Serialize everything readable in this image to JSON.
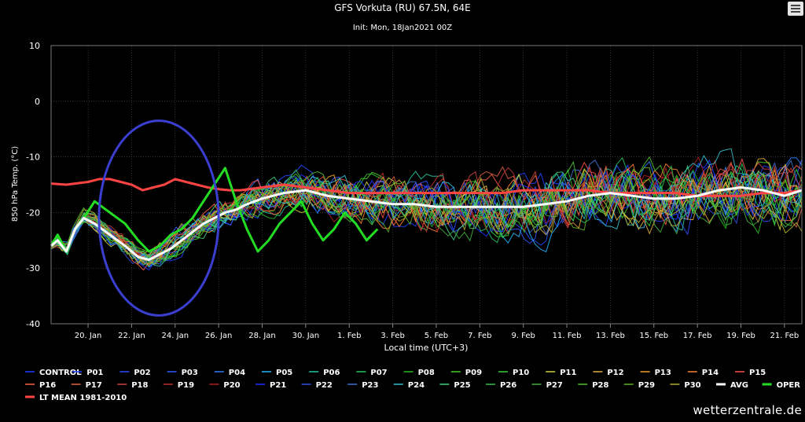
{
  "chart_data": {
    "type": "line",
    "title": "GFS Vorkuta (RU) 67.5N, 64E",
    "subtitle": "Init: Mon, 18Jan2021 00Z",
    "xlabel": "Local time (UTC+3)",
    "ylabel": "850 hPa Temp. (°C)",
    "ylim": [
      -40,
      10
    ],
    "yticks": [
      10,
      0,
      -10,
      -20,
      -30,
      -40
    ],
    "xlim": [
      18.3,
      52.8
    ],
    "xticks": [
      {
        "label": "20. Jan",
        "day": 20
      },
      {
        "label": "22. Jan",
        "day": 22
      },
      {
        "label": "24. Jan",
        "day": 24
      },
      {
        "label": "26. Jan",
        "day": 26
      },
      {
        "label": "28. Jan",
        "day": 28
      },
      {
        "label": "30. Jan",
        "day": 30
      },
      {
        "label": "1. Feb",
        "day": 32
      },
      {
        "label": "3. Feb",
        "day": 34
      },
      {
        "label": "5. Feb",
        "day": 36
      },
      {
        "label": "7. Feb",
        "day": 38
      },
      {
        "label": "9. Feb",
        "day": 40
      },
      {
        "label": "11. Feb",
        "day": 42
      },
      {
        "label": "13. Feb",
        "day": 44
      },
      {
        "label": "15. Feb",
        "day": 46
      },
      {
        "label": "17. Feb",
        "day": 48
      },
      {
        "label": "19. Feb",
        "day": 50
      },
      {
        "label": "21. Feb",
        "day": 52
      }
    ],
    "grid": true,
    "legend_position": "bottom",
    "series": [
      {
        "name": "OPER",
        "color": "#22dd22",
        "x": [
          18.3,
          18.6,
          19,
          19.4,
          19.8,
          20.3,
          21,
          21.7,
          22.3,
          22.8,
          23.3,
          23.8,
          24.3,
          24.8,
          25.3,
          25.8,
          26.3,
          26.8,
          27.3,
          27.8,
          28.3,
          28.8,
          29.3,
          29.8,
          30.3,
          30.8,
          31.3,
          31.8,
          32.3,
          32.8,
          33.3
        ],
        "values": [
          -26,
          -24,
          -27,
          -23,
          -21,
          -18,
          -20,
          -22,
          -25,
          -27,
          -26,
          -24,
          -23,
          -21,
          -18,
          -15,
          -12,
          -18,
          -23,
          -27,
          -25,
          -22,
          -20,
          -18,
          -22,
          -25,
          -23,
          -20,
          -22,
          -25,
          -23
        ]
      },
      {
        "name": "AVG",
        "color": "#ffffff",
        "x": [
          18.3,
          18.6,
          19,
          19.4,
          19.8,
          20.3,
          21,
          21.7,
          22.3,
          22.8,
          23.3,
          23.8,
          24.3,
          24.8,
          25.3,
          25.8,
          26.3,
          26.8,
          27.3,
          28,
          29,
          30,
          31,
          32,
          33,
          34,
          35,
          36,
          37,
          38,
          39,
          40,
          41,
          42,
          43,
          44,
          45,
          46,
          47,
          48,
          49,
          50,
          51,
          52,
          52.8
        ],
        "values": [
          -26,
          -25,
          -27,
          -23,
          -21,
          -22,
          -24,
          -26,
          -28,
          -28.5,
          -27.5,
          -26.5,
          -25,
          -23.5,
          -22,
          -21,
          -20,
          -19.5,
          -18.5,
          -17.5,
          -16.5,
          -16,
          -17,
          -17.5,
          -18,
          -18.5,
          -18.5,
          -19,
          -19,
          -19,
          -19,
          -19,
          -18.5,
          -18,
          -17,
          -16.5,
          -17,
          -17.5,
          -17.5,
          -17,
          -16,
          -15.5,
          -16,
          -17,
          -16
        ]
      },
      {
        "name": "LT MEAN 1981-2010",
        "color": "#ff4444",
        "x": [
          18.3,
          19,
          20,
          20.5,
          21,
          21.5,
          22,
          22.5,
          23,
          23.5,
          24,
          24.5,
          25,
          25.5,
          26,
          26.5,
          27,
          28,
          29,
          30,
          31,
          32,
          33,
          34,
          35,
          36,
          37,
          38,
          39,
          40,
          41,
          42,
          43,
          44,
          45,
          46,
          47,
          48,
          49,
          50,
          51,
          52,
          52.8
        ],
        "values": [
          -14.8,
          -15,
          -14.5,
          -14,
          -14,
          -14.5,
          -15,
          -16,
          -15.5,
          -15,
          -14,
          -14.5,
          -15,
          -15.5,
          -15.8,
          -16,
          -16,
          -15.5,
          -15,
          -15.5,
          -16,
          -16.5,
          -16.5,
          -16.5,
          -16.5,
          -16.5,
          -16.5,
          -16.5,
          -16.5,
          -16,
          -16,
          -16,
          -16,
          -16.5,
          -16.5,
          -16.5,
          -16.5,
          -17,
          -17,
          -17,
          -16.5,
          -16.5,
          -16
        ]
      }
    ],
    "annotations": [
      {
        "type": "ellipse",
        "color": "#3a3fd0",
        "from_day": 20.5,
        "to_day": 26.0,
        "top": -3.5,
        "bottom": -38.5
      }
    ]
  },
  "legend": {
    "items": [
      {
        "name": "CONTROL",
        "color": "#1e3cff",
        "width": 1
      },
      {
        "name": "P01",
        "color": "#2040ff",
        "width": 1
      },
      {
        "name": "P02",
        "color": "#2a4cff",
        "width": 1
      },
      {
        "name": "P03",
        "color": "#3058ff",
        "width": 1
      },
      {
        "name": "P04",
        "color": "#2f7bff",
        "width": 1
      },
      {
        "name": "P05",
        "color": "#20b8ff",
        "width": 1
      },
      {
        "name": "P06",
        "color": "#20c8a0",
        "width": 1
      },
      {
        "name": "P07",
        "color": "#22c860",
        "width": 1
      },
      {
        "name": "P08",
        "color": "#22bb22",
        "width": 1
      },
      {
        "name": "P09",
        "color": "#44d022",
        "width": 1
      },
      {
        "name": "P10",
        "color": "#33cc33",
        "width": 1
      },
      {
        "name": "P11",
        "color": "#d0d040",
        "width": 1
      },
      {
        "name": "P12",
        "color": "#e0b040",
        "width": 1
      },
      {
        "name": "P13",
        "color": "#f0a030",
        "width": 1
      },
      {
        "name": "P14",
        "color": "#ff8030",
        "width": 1
      },
      {
        "name": "P15",
        "color": "#ff5050",
        "width": 1
      },
      {
        "name": "P16",
        "color": "#ff6040",
        "width": 1
      },
      {
        "name": "P17",
        "color": "#e06040",
        "width": 1
      },
      {
        "name": "P18",
        "color": "#d04040",
        "width": 1
      },
      {
        "name": "P19",
        "color": "#c03030",
        "width": 1
      },
      {
        "name": "P20",
        "color": "#b02020",
        "width": 1
      },
      {
        "name": "P21",
        "color": "#2030ff",
        "width": 1
      },
      {
        "name": "P22",
        "color": "#3050e0",
        "width": 1
      },
      {
        "name": "P23",
        "color": "#4070d0",
        "width": 1
      },
      {
        "name": "P24",
        "color": "#30c0d0",
        "width": 1
      },
      {
        "name": "P25",
        "color": "#40d080",
        "width": 1
      },
      {
        "name": "P26",
        "color": "#30c050",
        "width": 1
      },
      {
        "name": "P27",
        "color": "#40b040",
        "width": 1
      },
      {
        "name": "P28",
        "color": "#50c030",
        "width": 1
      },
      {
        "name": "P29",
        "color": "#60b020",
        "width": 1
      },
      {
        "name": "P30",
        "color": "#b0b030",
        "width": 1
      },
      {
        "name": "AVG",
        "color": "#ffffff",
        "width": 3
      },
      {
        "name": "OPER",
        "color": "#22dd22",
        "width": 3
      },
      {
        "name": "LT MEAN 1981-2010",
        "color": "#ff4444",
        "width": 3
      }
    ]
  },
  "watermark": "wetterzentrale.de",
  "menu_icon": "hamburger-menu-icon"
}
